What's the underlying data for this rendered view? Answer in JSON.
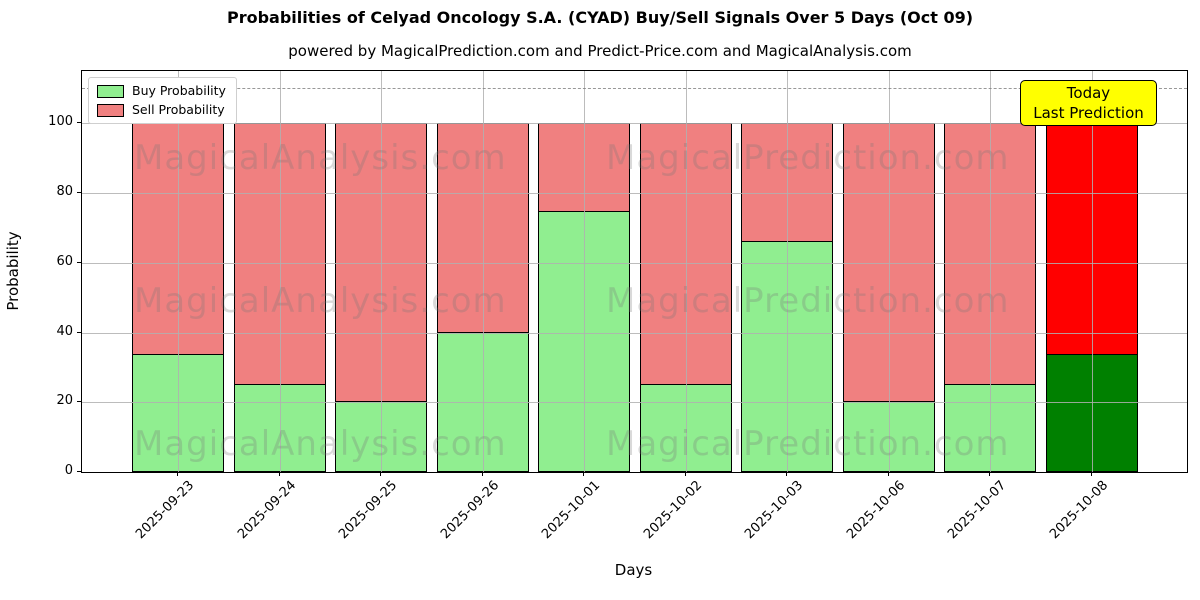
{
  "title": "Probabilities of Celyad Oncology S.A. (CYAD) Buy/Sell Signals Over 5 Days (Oct 09)",
  "subtitle": "powered by MagicalPrediction.com and Predict-Price.com and MagicalAnalysis.com",
  "legend": {
    "items": [
      {
        "label": "Buy Probability",
        "color": "#90EE90"
      },
      {
        "label": "Sell Probability",
        "color": "#F08080"
      }
    ]
  },
  "annotation": {
    "line1": "Today",
    "line2": "Last Prediction",
    "bg_color": "#FFFF00"
  },
  "watermarks": {
    "left": "MagicalAnalysis.com",
    "right": "MagicalPrediction.com"
  },
  "axes": {
    "xlabel": "Days",
    "ylabel": "Probability",
    "yticks": [
      0,
      20,
      40,
      60,
      80,
      100
    ]
  },
  "colors": {
    "buy": "#90EE90",
    "sell": "#F08080",
    "today_buy": "#008000",
    "today_sell": "#FF0000",
    "grid": "#b0b0b0",
    "dashed_line": "#7f7f7f",
    "annotation_bg": "#FFFF00",
    "bar_edge": "#000000"
  },
  "chart_data": {
    "type": "bar",
    "stacked": true,
    "title": "Probabilities of Celyad Oncology S.A. (CYAD) Buy/Sell Signals Over 5 Days (Oct 09)",
    "xlabel": "Days",
    "ylabel": "Probability",
    "categories": [
      "2025-09-23",
      "2025-09-24",
      "2025-09-25",
      "2025-09-26",
      "2025-10-01",
      "2025-10-02",
      "2025-10-03",
      "2025-10-06",
      "2025-10-07",
      "2025-10-08"
    ],
    "series": [
      {
        "name": "Buy Probability",
        "color": "#90EE90",
        "values": [
          34,
          25.5,
          20.5,
          40.3,
          75,
          25.5,
          66.5,
          20.5,
          25.5,
          34
        ]
      },
      {
        "name": "Sell Probability",
        "color": "#F08080",
        "values": [
          66,
          74.5,
          79.5,
          59.7,
          25,
          74.5,
          33.5,
          79.5,
          74.5,
          66
        ]
      }
    ],
    "today": {
      "index": 9,
      "category": "2025-10-08",
      "buy_color": "#008000",
      "sell_color": "#FF0000"
    },
    "ylim": [
      0,
      115
    ],
    "yticks": [
      0,
      20,
      40,
      60,
      80,
      100
    ],
    "threshold_line_y": 110,
    "grid": true,
    "legend_position": "upper left"
  }
}
